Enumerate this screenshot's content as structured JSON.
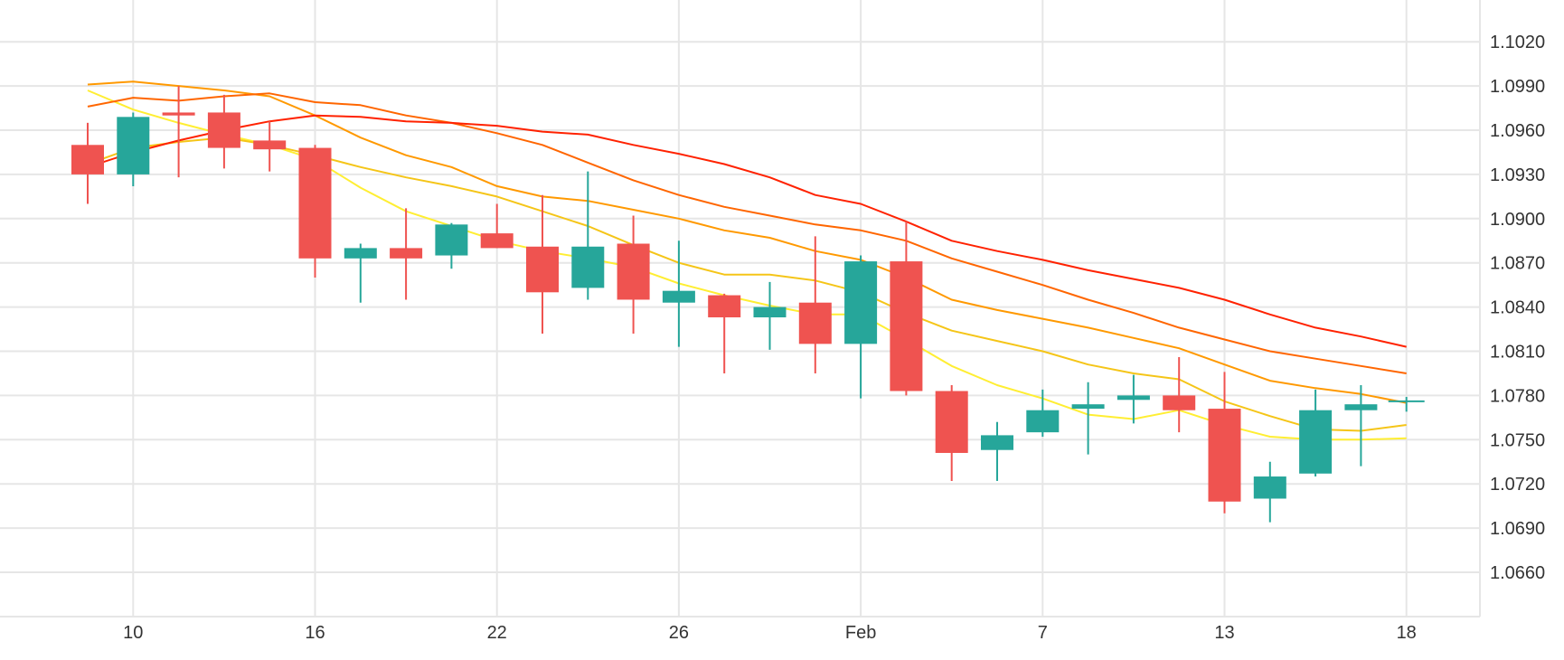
{
  "chart_data": {
    "type": "candlestick",
    "title": "",
    "xlabel": "",
    "ylabel": "",
    "y_axis_position": "right",
    "ylim": [
      1.063,
      1.1035
    ],
    "y_ticks": [
      "1.1020",
      "1.0990",
      "1.0960",
      "1.0930",
      "1.0900",
      "1.0870",
      "1.0840",
      "1.0810",
      "1.0780",
      "1.0750",
      "1.0720",
      "1.0690",
      "1.0660"
    ],
    "x_ticks": [
      {
        "index": 1,
        "label": "10"
      },
      {
        "index": 5,
        "label": "16"
      },
      {
        "index": 9,
        "label": "22"
      },
      {
        "index": 13,
        "label": "26"
      },
      {
        "index": 17,
        "label": "Feb"
      },
      {
        "index": 21,
        "label": "7"
      },
      {
        "index": 25,
        "label": "13"
      },
      {
        "index": 29,
        "label": "18"
      }
    ],
    "grid": true,
    "colors": {
      "up": "#26a69a",
      "down": "#ef5350"
    },
    "candles": [
      {
        "o": 1.095,
        "h": 1.0965,
        "l": 1.091,
        "c": 1.093
      },
      {
        "o": 1.093,
        "h": 1.0972,
        "l": 1.0922,
        "c": 1.0969
      },
      {
        "o": 1.0972,
        "h": 1.099,
        "l": 1.0928,
        "c": 1.097
      },
      {
        "o": 1.0972,
        "h": 1.0984,
        "l": 1.0934,
        "c": 1.0948
      },
      {
        "o": 1.0953,
        "h": 1.0966,
        "l": 1.0932,
        "c": 1.0947
      },
      {
        "o": 1.0948,
        "h": 1.095,
        "l": 1.086,
        "c": 1.0873
      },
      {
        "o": 1.0873,
        "h": 1.0883,
        "l": 1.0843,
        "c": 1.088
      },
      {
        "o": 1.088,
        "h": 1.0907,
        "l": 1.0845,
        "c": 1.0873
      },
      {
        "o": 1.0875,
        "h": 1.0897,
        "l": 1.0866,
        "c": 1.0896
      },
      {
        "o": 1.089,
        "h": 1.091,
        "l": 1.088,
        "c": 1.088
      },
      {
        "o": 1.0881,
        "h": 1.0916,
        "l": 1.0822,
        "c": 1.085
      },
      {
        "o": 1.0853,
        "h": 1.0932,
        "l": 1.0845,
        "c": 1.0881
      },
      {
        "o": 1.0883,
        "h": 1.0902,
        "l": 1.0822,
        "c": 1.0845
      },
      {
        "o": 1.0843,
        "h": 1.0885,
        "l": 1.0813,
        "c": 1.0851
      },
      {
        "o": 1.0848,
        "h": 1.0849,
        "l": 1.0795,
        "c": 1.0833
      },
      {
        "o": 1.0833,
        "h": 1.0857,
        "l": 1.0811,
        "c": 1.084
      },
      {
        "o": 1.0843,
        "h": 1.0888,
        "l": 1.0795,
        "c": 1.0815
      },
      {
        "o": 1.0815,
        "h": 1.0875,
        "l": 1.0778,
        "c": 1.0871
      },
      {
        "o": 1.0871,
        "h": 1.0898,
        "l": 1.078,
        "c": 1.0783
      },
      {
        "o": 1.0783,
        "h": 1.0787,
        "l": 1.0722,
        "c": 1.0741
      },
      {
        "o": 1.0743,
        "h": 1.0762,
        "l": 1.0722,
        "c": 1.0753
      },
      {
        "o": 1.0755,
        "h": 1.0784,
        "l": 1.0752,
        "c": 1.077
      },
      {
        "o": 1.0771,
        "h": 1.0789,
        "l": 1.074,
        "c": 1.0774
      },
      {
        "o": 1.0777,
        "h": 1.0794,
        "l": 1.0761,
        "c": 1.078
      },
      {
        "o": 1.078,
        "h": 1.0806,
        "l": 1.0755,
        "c": 1.077
      },
      {
        "o": 1.0771,
        "h": 1.0796,
        "l": 1.07,
        "c": 1.0708
      },
      {
        "o": 1.071,
        "h": 1.0735,
        "l": 1.0694,
        "c": 1.0725
      },
      {
        "o": 1.0727,
        "h": 1.0784,
        "l": 1.0725,
        "c": 1.077
      },
      {
        "o": 1.077,
        "h": 1.0787,
        "l": 1.0732,
        "c": 1.0774
      },
      {
        "o": 1.0776,
        "h": 1.0779,
        "l": 1.0769,
        "c": 1.0776
      }
    ],
    "series": [
      {
        "color": "#ffee33",
        "values": [
          1.0987,
          1.0974,
          1.0965,
          1.0957,
          1.095,
          1.094,
          1.0921,
          1.0905,
          1.0895,
          1.0885,
          1.0878,
          1.0873,
          1.0867,
          1.0856,
          1.0848,
          1.0841,
          1.0835,
          1.0835,
          1.0818,
          1.08,
          1.0787,
          1.0778,
          1.0767,
          1.0764,
          1.077,
          1.076,
          1.0752,
          1.075,
          1.075,
          1.0751
        ]
      },
      {
        "color": "#f5c518",
        "values": [
          1.0937,
          1.0948,
          1.0952,
          1.0955,
          1.095,
          1.0943,
          1.0935,
          1.0928,
          1.0922,
          1.0915,
          1.0905,
          1.0895,
          1.0882,
          1.087,
          1.0862,
          1.0862,
          1.0858,
          1.085,
          1.0836,
          1.0824,
          1.0817,
          1.081,
          1.0801,
          1.0795,
          1.0791,
          1.0776,
          1.0766,
          1.0757,
          1.0756,
          1.076
        ]
      },
      {
        "color": "#ff9900",
        "values": [
          1.0991,
          1.0993,
          1.099,
          1.0987,
          1.0983,
          1.097,
          1.0955,
          1.0943,
          1.0935,
          1.0922,
          1.0915,
          1.0912,
          1.0906,
          1.09,
          1.0892,
          1.0887,
          1.0878,
          1.0872,
          1.086,
          1.0845,
          1.0838,
          1.0832,
          1.0826,
          1.0819,
          1.0812,
          1.0801,
          1.079,
          1.0785,
          1.0781,
          1.0775
        ]
      },
      {
        "color": "#ff6600",
        "values": [
          1.0976,
          1.0982,
          1.098,
          1.0983,
          1.0985,
          1.0979,
          1.0977,
          1.097,
          1.0965,
          1.0958,
          1.095,
          1.0938,
          1.0926,
          1.0916,
          1.0908,
          1.0902,
          1.0896,
          1.0892,
          1.0885,
          1.0873,
          1.0864,
          1.0855,
          1.0845,
          1.0836,
          1.0826,
          1.0818,
          1.081,
          1.0805,
          1.08,
          1.0795
        ]
      },
      {
        "color": "#ff2200",
        "values": [
          1.0935,
          1.0945,
          1.0953,
          1.096,
          1.0966,
          1.097,
          1.0969,
          1.0966,
          1.0965,
          1.0963,
          1.0959,
          1.0957,
          1.095,
          1.0944,
          1.0937,
          1.0928,
          1.0916,
          1.091,
          1.0898,
          1.0885,
          1.0878,
          1.0872,
          1.0865,
          1.0859,
          1.0853,
          1.0845,
          1.0835,
          1.0826,
          1.082,
          1.0813
        ]
      }
    ]
  }
}
